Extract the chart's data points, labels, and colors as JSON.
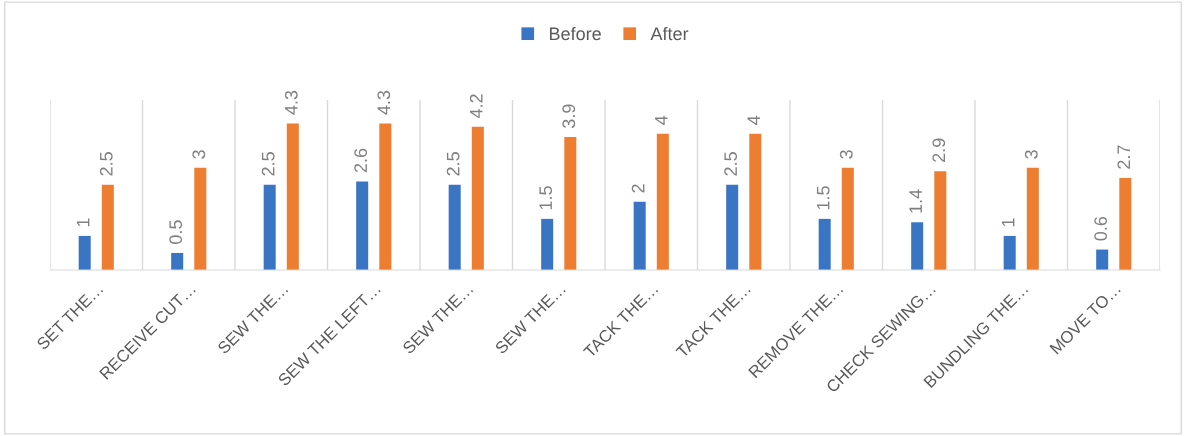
{
  "chart_data": {
    "type": "bar",
    "categories": [
      "SET THE…",
      "RECEIVE CUT…",
      "SEW THE…",
      "SEW THE LEFT…",
      "SEW THE…",
      "SEW THE…",
      "TACK THE…",
      "TACK THE…",
      "REMOVE THE…",
      "CHECK SEWING…",
      "BUNDLING THE…",
      "MOVE TO…"
    ],
    "series": [
      {
        "name": "Before",
        "color": "#3a75c4",
        "values": [
          1,
          0.5,
          2.5,
          2.6,
          2.5,
          1.5,
          2,
          2.5,
          1.5,
          1.4,
          1,
          0.6
        ]
      },
      {
        "name": "After",
        "color": "#ed7d31",
        "values": [
          2.5,
          3,
          4.3,
          4.3,
          4.2,
          3.9,
          4,
          4,
          3,
          2.9,
          3,
          2.7
        ]
      }
    ],
    "data_labels": true,
    "legend": "top",
    "grid": "x"
  }
}
